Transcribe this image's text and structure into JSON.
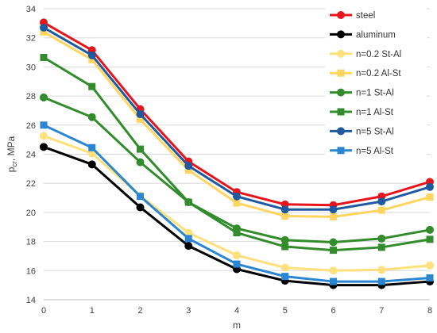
{
  "chart_data": {
    "type": "line",
    "title": "",
    "xlabel": "m",
    "ylabel": "p",
    "ylabel_sub": "cr",
    "ylabel_unit": ", MPa",
    "x": [
      0,
      1,
      2,
      3,
      4,
      5,
      6,
      7,
      8
    ],
    "xlim": [
      0,
      8
    ],
    "ylim": [
      14,
      34
    ],
    "x_ticks": [
      "0",
      "1",
      "2",
      "3",
      "4",
      "5",
      "6",
      "7",
      "8"
    ],
    "y_ticks": [
      "14",
      "16",
      "18",
      "20",
      "22",
      "24",
      "26",
      "28",
      "30",
      "32",
      "34"
    ],
    "grid": "horizontal",
    "legend_position": "top-right",
    "series": [
      {
        "name": "steel",
        "color": "#e8141b",
        "marker": "circle",
        "values": [
          33.05,
          31.15,
          27.1,
          23.5,
          21.4,
          20.55,
          20.5,
          21.1,
          22.1
        ]
      },
      {
        "name": "aluminum",
        "color": "#000000",
        "marker": "circle",
        "values": [
          24.5,
          23.3,
          20.35,
          17.7,
          16.1,
          15.3,
          15.0,
          15.0,
          15.25
        ]
      },
      {
        "name": "n=0.2 St-Al",
        "color": "#ffe07a",
        "marker": "circle",
        "values": [
          25.25,
          24.05,
          21.15,
          18.6,
          17.05,
          16.2,
          16.0,
          16.05,
          16.35
        ]
      },
      {
        "name": "n=0.2 Al-St",
        "color": "#ffd560",
        "marker": "square",
        "values": [
          32.4,
          30.5,
          26.4,
          22.9,
          20.65,
          19.75,
          19.7,
          20.15,
          21.05
        ]
      },
      {
        "name": "n=1 St-Al",
        "color": "#338c2c",
        "marker": "circle",
        "values": [
          27.9,
          26.55,
          23.45,
          20.7,
          18.9,
          18.1,
          17.95,
          18.2,
          18.8
        ]
      },
      {
        "name": "n=1 Al-St",
        "color": "#338c2c",
        "marker": "square",
        "values": [
          30.65,
          28.65,
          24.35,
          20.7,
          18.6,
          17.65,
          17.4,
          17.6,
          18.15
        ]
      },
      {
        "name": "n=5 St-Al",
        "color": "#1f5aa0",
        "marker": "circle",
        "values": [
          32.7,
          30.8,
          26.75,
          23.2,
          21.1,
          20.2,
          20.2,
          20.75,
          21.75
        ]
      },
      {
        "name": "n=5 Al-St",
        "color": "#2a86d0",
        "marker": "square",
        "values": [
          26.0,
          24.45,
          21.1,
          18.2,
          16.45,
          15.6,
          15.25,
          15.25,
          15.5
        ]
      }
    ]
  }
}
